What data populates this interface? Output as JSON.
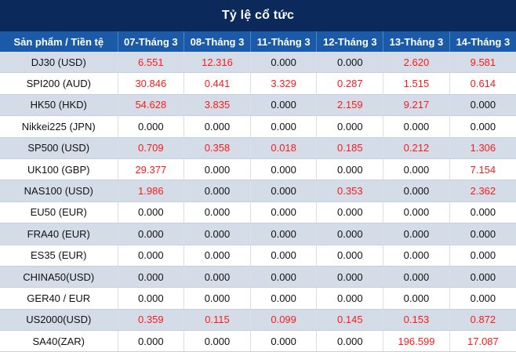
{
  "title": "Tỷ lệ cổ tức",
  "columns": [
    "Sản phẩm / Tiền tệ",
    "07-Tháng 3",
    "08-Tháng 3",
    "11-Tháng 3",
    "12-Tháng 3",
    "13-Tháng 3",
    "14-Tháng 3"
  ],
  "colors": {
    "title_bg": "#0b2a5b",
    "header_bg": "#1a5aa7",
    "row_stripe": "#d4dce7",
    "positive_value": "#ff1a1a",
    "zero_value": "#111111"
  },
  "rows": [
    {
      "product": "DJ30 (USD)",
      "values": [
        "6.551",
        "12.316",
        "0.000",
        "0.000",
        "2.620",
        "9.581"
      ]
    },
    {
      "product": "SPI200 (AUD)",
      "values": [
        "30.846",
        "0.441",
        "3.329",
        "0.287",
        "1.515",
        "0.614"
      ]
    },
    {
      "product": "HK50 (HKD)",
      "values": [
        "54.628",
        "3.835",
        "0.000",
        "2.159",
        "9.217",
        "0.000"
      ]
    },
    {
      "product": "Nikkei225 (JPN)",
      "values": [
        "0.000",
        "0.000",
        "0.000",
        "0.000",
        "0.000",
        "0.000"
      ]
    },
    {
      "product": "SP500 (USD)",
      "values": [
        "0.709",
        "0.358",
        "0.018",
        "0.185",
        "0.212",
        "1.306"
      ]
    },
    {
      "product": "UK100 (GBP)",
      "values": [
        "29.377",
        "0.000",
        "0.000",
        "0.000",
        "0.000",
        "7.154"
      ]
    },
    {
      "product": "NAS100 (USD)",
      "values": [
        "1.986",
        "0.000",
        "0.000",
        "0.353",
        "0.000",
        "2.362"
      ]
    },
    {
      "product": "EU50 (EUR)",
      "values": [
        "0.000",
        "0.000",
        "0.000",
        "0.000",
        "0.000",
        "0.000"
      ]
    },
    {
      "product": "FRA40 (EUR)",
      "values": [
        "0.000",
        "0.000",
        "0.000",
        "0.000",
        "0.000",
        "0.000"
      ]
    },
    {
      "product": "ES35 (EUR)",
      "values": [
        "0.000",
        "0.000",
        "0.000",
        "0.000",
        "0.000",
        "0.000"
      ]
    },
    {
      "product": "CHINA50(USD)",
      "values": [
        "0.000",
        "0.000",
        "0.000",
        "0.000",
        "0.000",
        "0.000"
      ]
    },
    {
      "product": "GER40 / EUR",
      "values": [
        "0.000",
        "0.000",
        "0.000",
        "0.000",
        "0.000",
        "0.000"
      ]
    },
    {
      "product": "US2000(USD)",
      "values": [
        "0.359",
        "0.115",
        "0.099",
        "0.145",
        "0.153",
        "0.872"
      ]
    },
    {
      "product": "SA40(ZAR)",
      "values": [
        "0.000",
        "0.000",
        "0.000",
        "0.000",
        "196.599",
        "17.087"
      ]
    }
  ]
}
